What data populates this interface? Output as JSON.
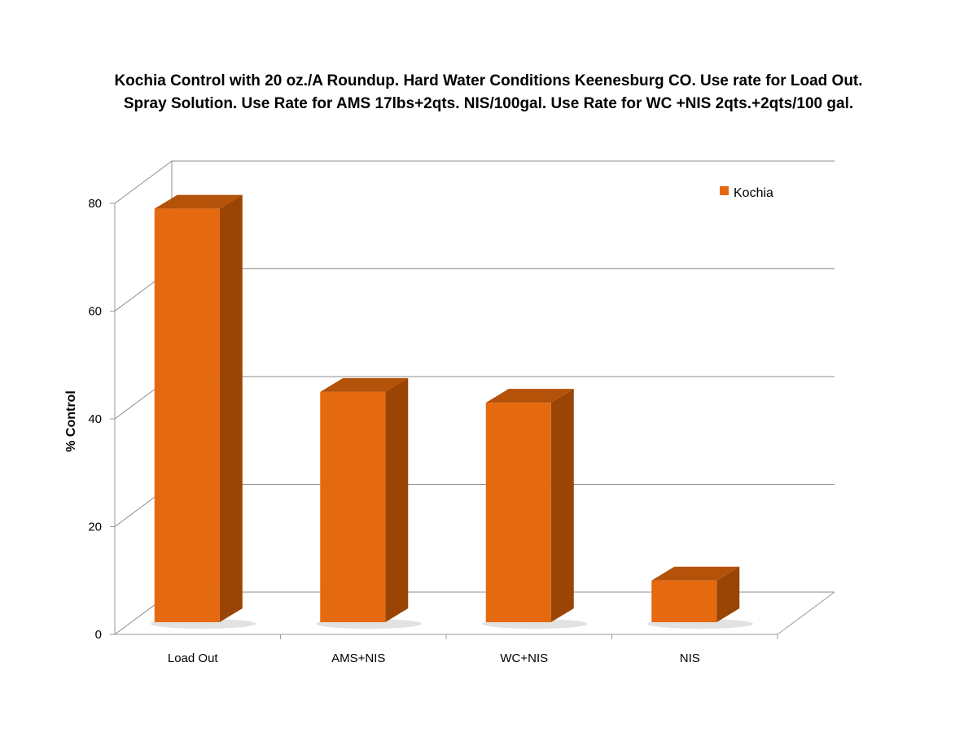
{
  "chart_data": {
    "type": "bar",
    "title": "Kochia Control with 20 oz./A Roundup. Hard Water Conditions Keenesburg CO. Use rate for Load Out. Spray Solution.  Use Rate for AMS 17lbs+2qts. NIS/100gal. Use Rate for WC +NIS 2qts.+2qts/100 gal.",
    "xlabel": "",
    "ylabel": "% Control",
    "categories": [
      "Load Out",
      "AMS+NIS",
      "WC+NIS",
      "NIS"
    ],
    "series": [
      {
        "name": "Kochia",
        "values": [
          79,
          45,
          43,
          10
        ]
      }
    ],
    "ylim": [
      0,
      80
    ],
    "yticks": [
      "0",
      "20",
      "40",
      "60",
      "80"
    ],
    "grid": true,
    "legend_position": "top-right",
    "three_d": true,
    "colors": {
      "bar_front": "#E56A0F",
      "bar_side": "#9A4405",
      "bar_top": "#B5520A",
      "grid": "#8c8c8c"
    }
  }
}
